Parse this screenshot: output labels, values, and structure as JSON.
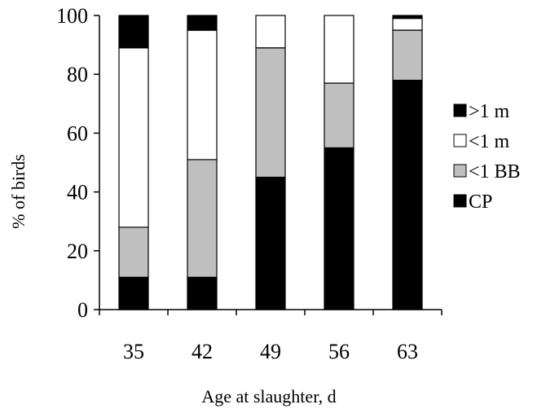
{
  "chart_data": {
    "type": "bar",
    "stacked": true,
    "title": "",
    "xlabel": "Age at slaughter, d",
    "ylabel": "% of birds",
    "categories": [
      "35",
      "42",
      "49",
      "56",
      "63"
    ],
    "ylim": [
      0,
      100
    ],
    "yticks": [
      0,
      20,
      40,
      60,
      80,
      100
    ],
    "grid": false,
    "legend_position": "right",
    "series": [
      {
        "name": "CP",
        "color": "#000000",
        "values": [
          11,
          11,
          45,
          55,
          78
        ]
      },
      {
        "name": "<1 BB",
        "color": "#bfbfbf",
        "values": [
          17,
          40,
          44,
          22,
          17
        ]
      },
      {
        "name": "<1 m",
        "color": "#ffffff",
        "values": [
          61,
          44,
          11,
          23,
          4
        ]
      },
      {
        "name": ">1 m",
        "color": "#000000",
        "values": [
          11,
          5,
          0,
          0,
          1
        ]
      }
    ],
    "legend_order": [
      ">1 m",
      "<1 m",
      "<1 BB",
      "CP"
    ]
  }
}
